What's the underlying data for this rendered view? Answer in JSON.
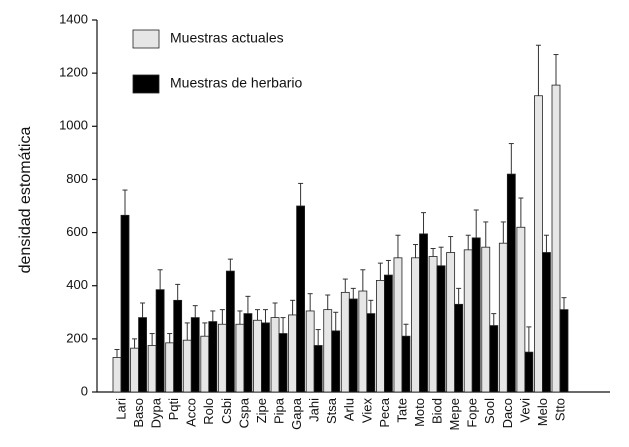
{
  "chart_data": {
    "type": "bar",
    "y_label": "densidad estomática",
    "categories": [
      "Lari",
      "Baso",
      "Dypa",
      "Pqti",
      "Acco",
      "Rolo",
      "Csbi",
      "Cspa",
      "Zipe",
      "Pipa",
      "Gapa",
      "Jahi",
      "Stsa",
      "Arlu",
      "Viex",
      "Peca",
      "Tate",
      "Moto",
      "Biod",
      "Mepe",
      "Fope",
      "Sool",
      "Daco",
      "Vevi",
      "Melo",
      "Stto"
    ],
    "series": [
      {
        "name": "Muestras actuales",
        "color": "#e6e6e6",
        "values": [
          130,
          165,
          175,
          185,
          195,
          210,
          255,
          255,
          270,
          280,
          290,
          305,
          310,
          375,
          380,
          420,
          505,
          505,
          510,
          525,
          535,
          545,
          560,
          620,
          1115,
          1155
        ],
        "errors": [
          30,
          35,
          45,
          35,
          65,
          50,
          55,
          50,
          40,
          55,
          55,
          65,
          55,
          50,
          80,
          65,
          85,
          50,
          30,
          60,
          55,
          95,
          80,
          110,
          190,
          115
        ]
      },
      {
        "name": "Muestras de herbario",
        "color": "#000000",
        "values": [
          665,
          280,
          385,
          345,
          280,
          265,
          455,
          295,
          260,
          220,
          700,
          175,
          230,
          350,
          295,
          440,
          210,
          595,
          475,
          330,
          580,
          250,
          820,
          150,
          525,
          310
        ],
        "errors": [
          95,
          55,
          75,
          60,
          45,
          40,
          45,
          65,
          50,
          60,
          85,
          60,
          70,
          40,
          50,
          55,
          45,
          80,
          70,
          60,
          105,
          45,
          115,
          95,
          65,
          45
        ]
      }
    ],
    "ylim": [
      0,
      1400
    ],
    "yticks": [
      0,
      200,
      400,
      600,
      800,
      1000,
      1200,
      1400
    ],
    "legend": "top-left"
  }
}
